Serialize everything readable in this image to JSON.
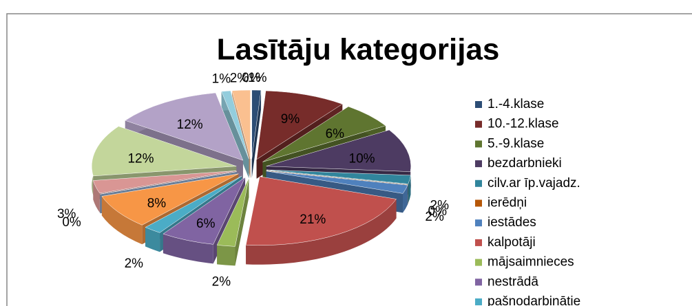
{
  "chart_data": {
    "type": "pie3d",
    "title": "Lasītāju kategorijas",
    "categories": [
      "1.-4.klase",
      "10.-12.klase",
      "5.-9.klase",
      "bezdarbnieki",
      "cilv.ar īp.vajadz.",
      "ierēdņi",
      "iestādes",
      "kalpotāji",
      "mājsaimnieces",
      "nestrādā",
      "pašnodarbinātie",
      null,
      null,
      null,
      null,
      null,
      null,
      null,
      null
    ],
    "values": [
      1,
      9,
      6,
      10,
      2,
      0,
      2,
      21,
      2,
      6,
      2,
      8,
      0,
      3,
      12,
      12,
      1,
      2,
      0
    ],
    "value_labels": [
      "1%",
      "9%",
      "6%",
      "10%",
      "2%",
      "0%",
      "2%",
      "21%",
      "2%",
      "6%",
      "2%",
      "8%",
      "0%",
      "3%",
      "12%",
      "12%",
      "1%",
      "2%",
      "0%"
    ],
    "colors": [
      "#2c4d75",
      "#772c2a",
      "#5f7530",
      "#4d3b62",
      "#31859c",
      "#b65708",
      "#4f81bd",
      "#c0504d",
      "#9bbb59",
      "#8064a2",
      "#4bacc6",
      "#f79646",
      "#95b3d7",
      "#d99694",
      "#c3d69b",
      "#b3a2c7",
      "#93cddd",
      "#fac090",
      "#b9cde5"
    ],
    "legend": "right"
  }
}
